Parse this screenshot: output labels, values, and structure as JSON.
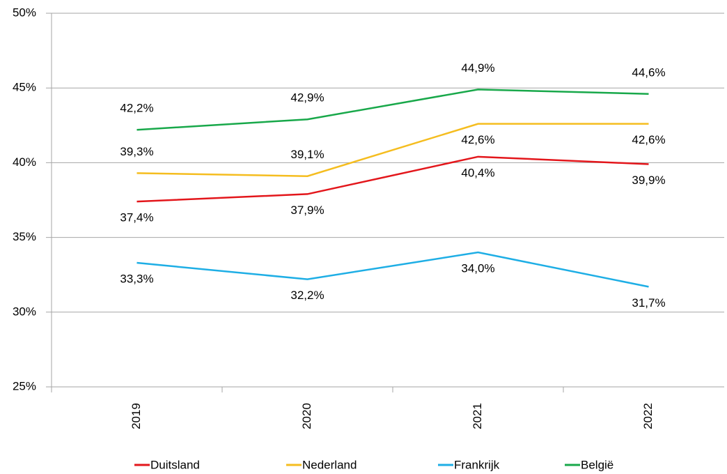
{
  "chart_data": {
    "type": "line",
    "categories": [
      "2019",
      "2020",
      "2021",
      "2022"
    ],
    "series": [
      {
        "name": "Duitsland",
        "color": "#e3161b",
        "values": [
          37.4,
          37.9,
          40.4,
          39.9
        ],
        "value_labels": [
          "37,4%",
          "37,9%",
          "40,4%",
          "39,9%"
        ]
      },
      {
        "name": "Nederland",
        "color": "#f5bd1f",
        "values": [
          39.3,
          39.1,
          42.6,
          42.6
        ],
        "value_labels": [
          "39,3%",
          "39,1%",
          "42,6%",
          "42,6%"
        ]
      },
      {
        "name": "Frankrijk",
        "color": "#1eaee5",
        "values": [
          33.3,
          32.2,
          34.0,
          31.7
        ],
        "value_labels": [
          "33,3%",
          "32,2%",
          "34,0%",
          "31,7%"
        ]
      },
      {
        "name": "België",
        "color": "#18a84a",
        "values": [
          42.2,
          42.9,
          44.9,
          44.6
        ],
        "value_labels": [
          "42,2%",
          "42,9%",
          "44,9%",
          "44,6%"
        ]
      }
    ],
    "ylim": [
      25,
      50
    ],
    "yticks": [
      {
        "value": 25,
        "label": "25%"
      },
      {
        "value": 30,
        "label": "30%"
      },
      {
        "value": 35,
        "label": "35%"
      },
      {
        "value": 40,
        "label": "40%"
      },
      {
        "value": 45,
        "label": "45%"
      },
      {
        "value": 50,
        "label": "50%"
      }
    ],
    "grid": true,
    "legend": "bottom"
  }
}
